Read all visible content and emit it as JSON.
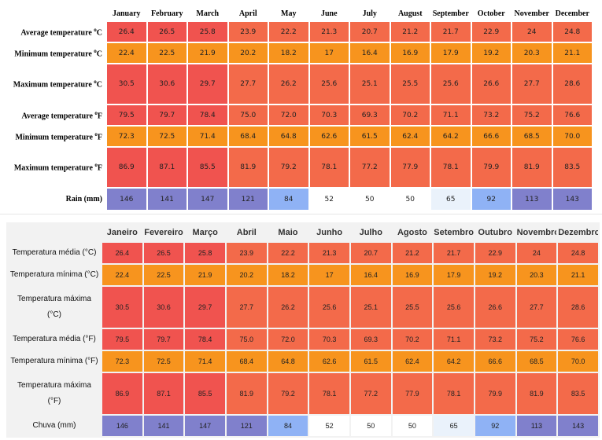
{
  "colors": {
    "red": "#f0534f",
    "orange_red": "#f36a4a",
    "orange": "#f7941e",
    "blue": "#8080cc",
    "light_blue": "#8fb2f5",
    "pale_blue": "#eaf2fb",
    "white": "#ffffff"
  },
  "english": {
    "months": [
      "January",
      "February",
      "March",
      "April",
      "May",
      "June",
      "July",
      "August",
      "September",
      "October",
      "November",
      "December"
    ],
    "labels": {
      "avg_c": "Average temperature",
      "min_c": "Minimum temperature",
      "max_c": "Maximum temperature",
      "avg_f": "Average temperature",
      "min_f": "Minimum temperature",
      "max_f": "Maximum temperature",
      "rain": "Rain (mm)"
    },
    "units": {
      "c_o": "o",
      "c_letter": "C",
      "f_o": "o",
      "f_letter": "F"
    }
  },
  "portuguese": {
    "months": [
      "Janeiro",
      "Fevereiro",
      "Março",
      "Abril",
      "Maio",
      "Junho",
      "Julho",
      "Agosto",
      "Setembro",
      "Outubro",
      "Novembro",
      "Dezembro"
    ],
    "labels": {
      "avg_c": "Temperatura média (°C)",
      "min_c": "Temperatura mínima (°C)",
      "max_c_1": "Temperatura máxima",
      "max_c_2": "(°C)",
      "avg_f": "Temperatura média (°F)",
      "min_f": "Temperatura mínima (°F)",
      "max_f_1": "Temperatura máxima",
      "max_f_2": "(°F)",
      "rain": "Chuva (mm)"
    }
  },
  "values": {
    "avg_c": [
      "26.4",
      "26.5",
      "25.8",
      "23.9",
      "22.2",
      "21.3",
      "20.7",
      "21.2",
      "21.7",
      "22.9",
      "24",
      "24.8"
    ],
    "min_c": [
      "22.4",
      "22.5",
      "21.9",
      "20.2",
      "18.2",
      "17",
      "16.4",
      "16.9",
      "17.9",
      "19.2",
      "20.3",
      "21.1"
    ],
    "max_c": [
      "30.5",
      "30.6",
      "29.7",
      "27.7",
      "26.2",
      "25.6",
      "25.1",
      "25.5",
      "25.6",
      "26.6",
      "27.7",
      "28.6"
    ],
    "avg_f": [
      "79.5",
      "79.7",
      "78.4",
      "75.0",
      "72.0",
      "70.3",
      "69.3",
      "70.2",
      "71.1",
      "73.2",
      "75.2",
      "76.6"
    ],
    "min_f": [
      "72.3",
      "72.5",
      "71.4",
      "68.4",
      "64.8",
      "62.6",
      "61.5",
      "62.4",
      "64.2",
      "66.6",
      "68.5",
      "70.0"
    ],
    "max_f": [
      "86.9",
      "87.1",
      "85.5",
      "81.9",
      "79.2",
      "78.1",
      "77.2",
      "77.9",
      "78.1",
      "79.9",
      "81.9",
      "83.5"
    ],
    "rain": [
      "146",
      "141",
      "147",
      "121",
      "84",
      "52",
      "50",
      "50",
      "65",
      "92",
      "113",
      "143"
    ]
  },
  "cell_colors": {
    "avg_c": [
      "red",
      "red",
      "red",
      "orange_red",
      "orange_red",
      "orange_red",
      "orange_red",
      "orange_red",
      "orange_red",
      "orange_red",
      "orange_red",
      "orange_red"
    ],
    "min_c": [
      "orange",
      "orange",
      "orange",
      "orange",
      "orange",
      "orange",
      "orange",
      "orange",
      "orange",
      "orange",
      "orange",
      "orange"
    ],
    "max_c": [
      "red",
      "red",
      "red",
      "orange_red",
      "orange_red",
      "orange_red",
      "orange_red",
      "orange_red",
      "orange_red",
      "orange_red",
      "orange_red",
      "orange_red"
    ],
    "avg_f": [
      "red",
      "red",
      "red",
      "orange_red",
      "orange_red",
      "orange_red",
      "orange_red",
      "orange_red",
      "orange_red",
      "orange_red",
      "orange_red",
      "orange_red"
    ],
    "min_f": [
      "orange",
      "orange",
      "orange",
      "orange",
      "orange",
      "orange",
      "orange",
      "orange",
      "orange",
      "orange",
      "orange",
      "orange"
    ],
    "max_f": [
      "red",
      "red",
      "red",
      "orange_red",
      "orange_red",
      "orange_red",
      "orange_red",
      "orange_red",
      "orange_red",
      "orange_red",
      "orange_red",
      "orange_red"
    ],
    "rain": [
      "blue",
      "blue",
      "blue",
      "blue",
      "light_blue",
      "white",
      "white",
      "white",
      "pale_blue",
      "light_blue",
      "blue",
      "blue"
    ]
  }
}
